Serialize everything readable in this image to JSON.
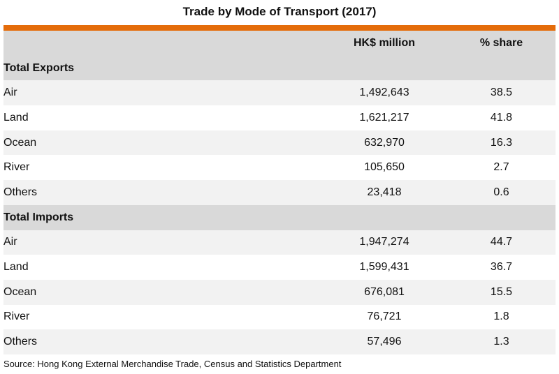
{
  "chart_data": {
    "type": "table",
    "title": "Trade by Mode of Transport (2017)",
    "columns": [
      "",
      "HK$ million",
      "% share"
    ],
    "sections": [
      {
        "name": "Total Exports",
        "rows": [
          {
            "mode": "Air",
            "value": "1,492,643",
            "share": "38.5"
          },
          {
            "mode": "Land",
            "value": "1,621,217",
            "share": "41.8"
          },
          {
            "mode": "Ocean",
            "value": "632,970",
            "share": "16.3"
          },
          {
            "mode": "River",
            "value": "105,650",
            "share": "2.7"
          },
          {
            "mode": "Others",
            "value": "23,418",
            "share": "0.6"
          }
        ]
      },
      {
        "name": "Total Imports",
        "rows": [
          {
            "mode": "Air",
            "value": "1,947,274",
            "share": "44.7"
          },
          {
            "mode": "Land",
            "value": "1,599,431",
            "share": "36.7"
          },
          {
            "mode": "Ocean",
            "value": "676,081",
            "share": "15.5"
          },
          {
            "mode": "River",
            "value": "76,721",
            "share": "1.8"
          },
          {
            "mode": "Others",
            "value": "57,496",
            "share": "1.3"
          }
        ]
      }
    ],
    "source": "Source: Hong Kong External Merchandise Trade, Census and Statistics Department"
  },
  "colors": {
    "accent": "#e46c0a",
    "header_bg": "#d9d9d9",
    "row_shade": "#f2f2f2"
  }
}
